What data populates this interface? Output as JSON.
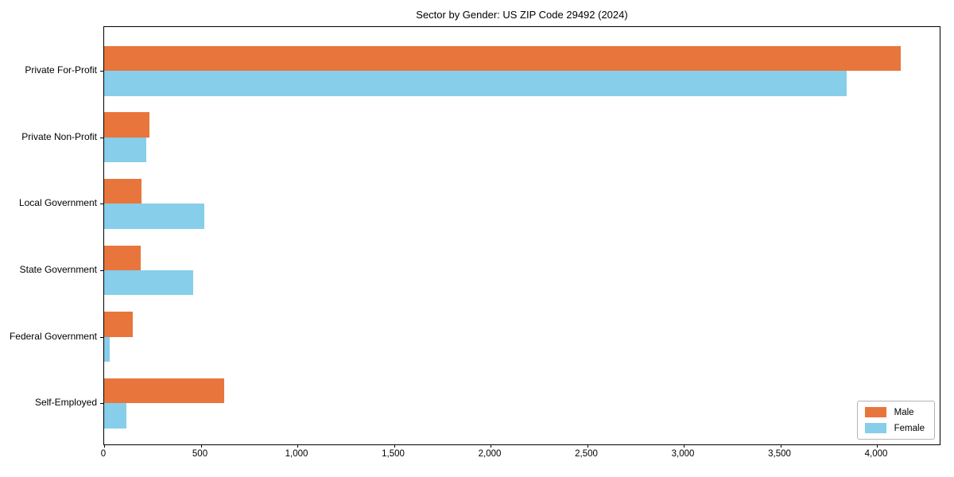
{
  "chart_data": {
    "type": "bar",
    "orientation": "horizontal",
    "title": "Sector by Gender: US ZIP Code 29492 (2024)",
    "categories": [
      "Private For-Profit",
      "Private Non-Profit",
      "Local Government",
      "State Government",
      "Federal Government",
      "Self-Employed"
    ],
    "series": [
      {
        "name": "Male",
        "color": "#e8763c",
        "values": [
          4125,
          235,
          195,
          190,
          150,
          620
        ]
      },
      {
        "name": "Female",
        "color": "#87ceeb",
        "values": [
          3845,
          220,
          520,
          460,
          30,
          115
        ]
      }
    ],
    "xlabel": "",
    "ylabel": "",
    "xlim": [
      0,
      4325
    ],
    "x_ticks": [
      0,
      500,
      1000,
      1500,
      2000,
      2500,
      3000,
      3500,
      4000
    ],
    "x_tick_labels": [
      "0",
      "500",
      "1,000",
      "1,500",
      "2,000",
      "2,500",
      "3,000",
      "3,500",
      "4,000"
    ],
    "legend": {
      "position": "lower right",
      "entries": [
        "Male",
        "Female"
      ]
    },
    "grid": false,
    "axis_color": "#000000",
    "background": "#ffffff"
  }
}
